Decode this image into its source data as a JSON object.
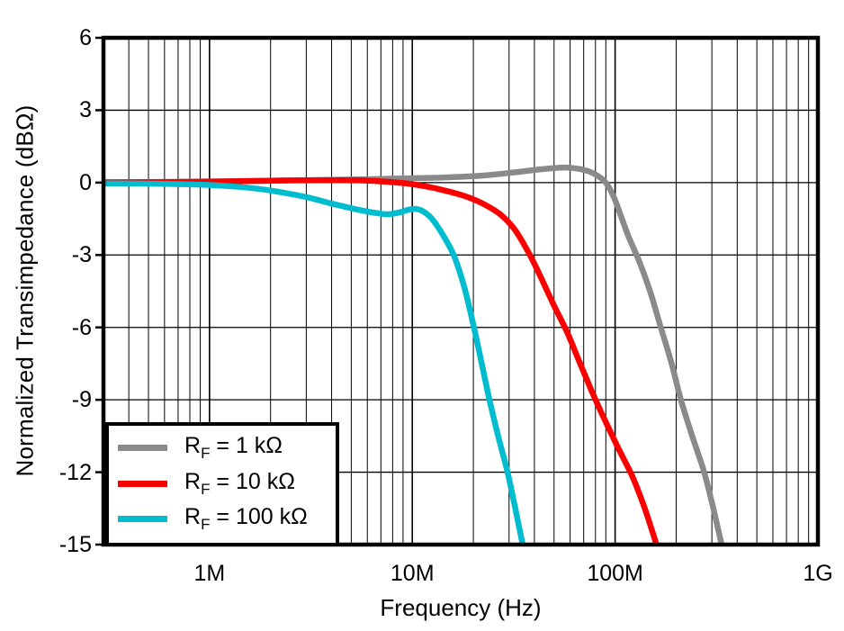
{
  "chart_data": {
    "type": "line",
    "title": "",
    "xlabel": "Frequency (Hz)",
    "ylabel": "Normalized Transimpedance (dBΩ)",
    "x_scale": "log",
    "x_range": [
      300000.0,
      1000000000.0
    ],
    "y_range": [
      -15,
      6
    ],
    "y_tick_step": 3,
    "grid": "on",
    "background_color": "#ffffff",
    "axis_color": "#000000",
    "grid_color": "#000000",
    "y_ticks": [
      {
        "value": 6,
        "label": "6"
      },
      {
        "value": 3,
        "label": "3"
      },
      {
        "value": 0,
        "label": "0"
      },
      {
        "value": -3,
        "label": "-3"
      },
      {
        "value": -6,
        "label": "-6"
      },
      {
        "value": -9,
        "label": "-9"
      },
      {
        "value": -12,
        "label": "-12"
      },
      {
        "value": -15,
        "label": "-15"
      }
    ],
    "x_major_ticks": [
      {
        "value": 1000000.0,
        "label": "1M"
      },
      {
        "value": 10000000.0,
        "label": "10M"
      },
      {
        "value": 100000000.0,
        "label": "100M"
      },
      {
        "value": 1000000000.0,
        "label": "1G"
      }
    ],
    "legend_position": "bottom-left",
    "series": [
      {
        "id": "rf-1k",
        "name": "RF = 1 kΩ",
        "label": {
          "base": "R",
          "sub": "F",
          "rest": " = 1 kΩ"
        },
        "color": "#8A8A8A",
        "points": [
          [
            300000.0,
            0.02
          ],
          [
            600000.0,
            0.03
          ],
          [
            1000000.0,
            0.05
          ],
          [
            2000000.0,
            0.08
          ],
          [
            3500000.0,
            0.11
          ],
          [
            6000000.0,
            0.14
          ],
          [
            10000000.0,
            0.18
          ],
          [
            15000000.0,
            0.22
          ],
          [
            22000000.0,
            0.29
          ],
          [
            30000000.0,
            0.4
          ],
          [
            40000000.0,
            0.52
          ],
          [
            50000000.0,
            0.6
          ],
          [
            58000000.0,
            0.62
          ],
          [
            66000000.0,
            0.57
          ],
          [
            75000000.0,
            0.45
          ],
          [
            83000000.0,
            0.25
          ],
          [
            90000000.0,
            0
          ],
          [
            98000000.0,
            -0.55
          ],
          [
            106000000.0,
            -1.3
          ],
          [
            116000000.0,
            -2.2
          ],
          [
            132000000.0,
            -3.3
          ],
          [
            150000000.0,
            -4.6
          ],
          [
            168000000.0,
            -6
          ],
          [
            190000000.0,
            -7.5
          ],
          [
            211000000.0,
            -9
          ],
          [
            240000000.0,
            -10.5
          ],
          [
            275000000.0,
            -12
          ],
          [
            305000000.0,
            -13.5
          ],
          [
            335000000.0,
            -15
          ]
        ]
      },
      {
        "id": "rf-10k",
        "name": "RF = 10 kΩ",
        "label": {
          "base": "R",
          "sub": "F",
          "rest": " = 10 kΩ"
        },
        "color": "#FA0000",
        "points": [
          [
            300000.0,
            0
          ],
          [
            800000.0,
            0.03
          ],
          [
            1500000.0,
            0.06
          ],
          [
            2500000.0,
            0.09
          ],
          [
            4000000.0,
            0.1
          ],
          [
            5500000.0,
            0.09
          ],
          [
            7000000.0,
            0.05
          ],
          [
            9000000.0,
            -0.02
          ],
          [
            11000000.0,
            -0.12
          ],
          [
            14000000.0,
            -0.3
          ],
          [
            18000000.0,
            -0.55
          ],
          [
            22000000.0,
            -0.85
          ],
          [
            27000000.0,
            -1.3
          ],
          [
            32000000.0,
            -1.95
          ],
          [
            38000000.0,
            -3
          ],
          [
            44000000.0,
            -4.1
          ],
          [
            50000000.0,
            -5.1
          ],
          [
            58000000.0,
            -6.2
          ],
          [
            65000000.0,
            -7.2
          ],
          [
            72000000.0,
            -8.1
          ],
          [
            80000000.0,
            -9
          ],
          [
            92000000.0,
            -10.1
          ],
          [
            105000000.0,
            -11.1
          ],
          [
            122000000.0,
            -12.2
          ],
          [
            140000000.0,
            -13.5
          ],
          [
            160000000.0,
            -15
          ]
        ]
      },
      {
        "id": "rf-100k",
        "name": "RF = 100 kΩ",
        "label": {
          "base": "R",
          "sub": "F",
          "rest": " = 100 kΩ"
        },
        "color": "#00BCCF",
        "points": [
          [
            300000.0,
            -0.03
          ],
          [
            600000.0,
            -0.05
          ],
          [
            1000000.0,
            -0.1
          ],
          [
            1500000.0,
            -0.2
          ],
          [
            2000000.0,
            -0.33
          ],
          [
            3000000.0,
            -0.6
          ],
          [
            4000000.0,
            -0.87
          ],
          [
            5000000.0,
            -1.06
          ],
          [
            6000000.0,
            -1.2
          ],
          [
            7000000.0,
            -1.29
          ],
          [
            7700000.0,
            -1.31
          ],
          [
            8600000.0,
            -1.24
          ],
          [
            9600000.0,
            -1.12
          ],
          [
            10400000.0,
            -1.09
          ],
          [
            11300000.0,
            -1.19
          ],
          [
            12500000.0,
            -1.5
          ],
          [
            14000000.0,
            -2.1
          ],
          [
            16000000.0,
            -3
          ],
          [
            18000000.0,
            -4.3
          ],
          [
            20000000.0,
            -5.9
          ],
          [
            22000000.0,
            -7.5
          ],
          [
            24000000.0,
            -9
          ],
          [
            26500000.0,
            -10.5
          ],
          [
            29500000.0,
            -12
          ],
          [
            32000000.0,
            -13.4
          ],
          [
            35000000.0,
            -15
          ]
        ]
      }
    ]
  }
}
